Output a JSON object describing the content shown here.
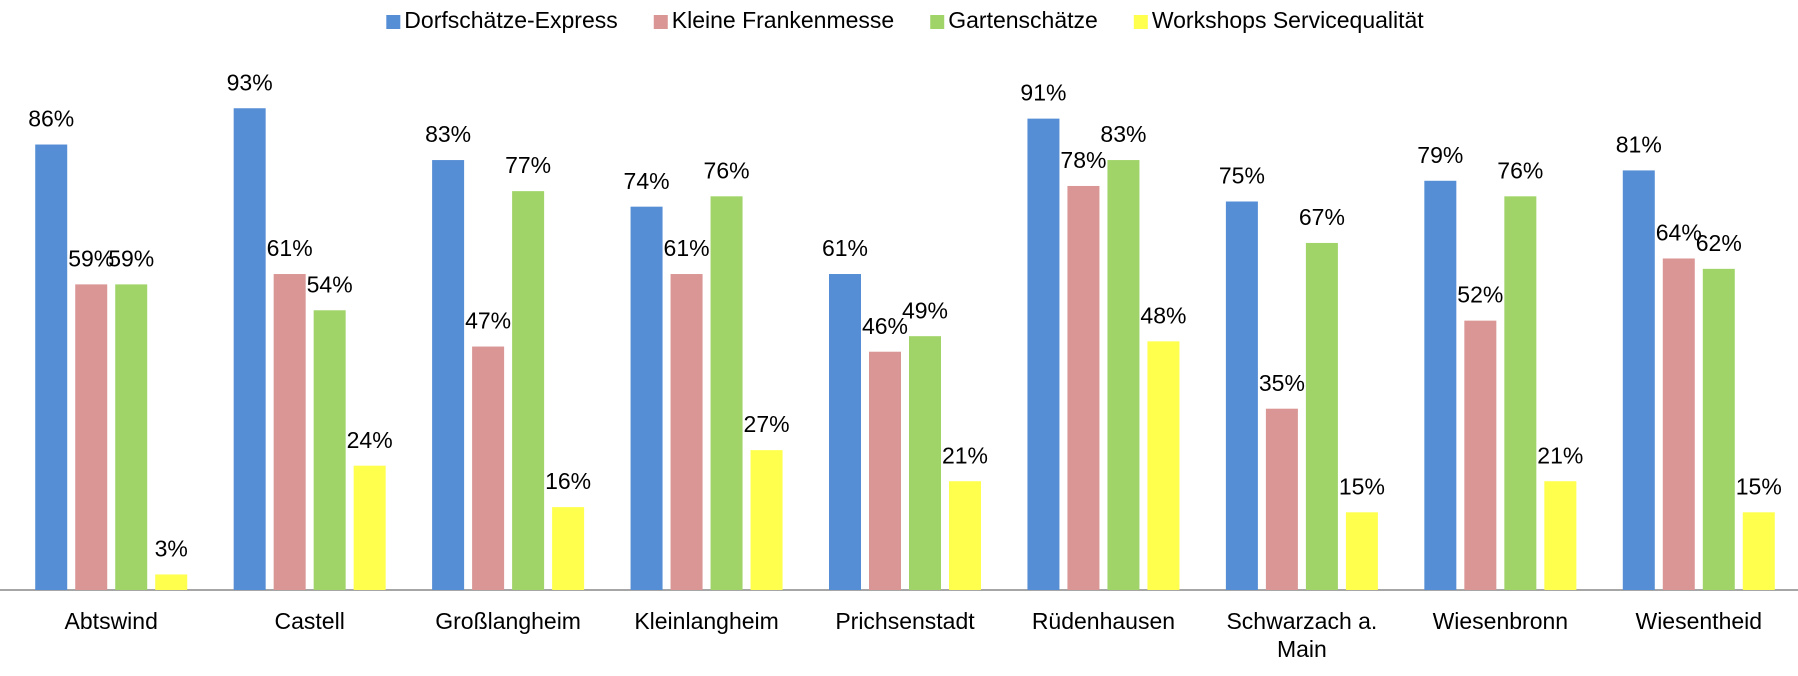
{
  "chart_data": {
    "type": "bar",
    "categories": [
      "Abtswind",
      "Castell",
      "Großlangheim",
      "Kleinlangheim",
      "Prichsenstadt",
      "Rüdenhausen",
      "Schwarzach a. Main",
      "Wiesenbronn",
      "Wiesentheid"
    ],
    "series": [
      {
        "name": "Dorfschätze-Express",
        "color": "#558ed5",
        "values": [
          86,
          93,
          83,
          74,
          61,
          91,
          75,
          79,
          81
        ],
        "value_labels": [
          "86%",
          "93%",
          "83%",
          "74%",
          "61%",
          "91%",
          "75%",
          "79%",
          "81%"
        ]
      },
      {
        "name": "Kleine Frankenmesse",
        "color": "#d99694",
        "values": [
          59,
          61,
          47,
          61,
          46,
          78,
          35,
          52,
          64
        ],
        "value_labels": [
          "59%",
          "61%",
          "47%",
          "61%",
          "46%",
          "78%",
          "35%",
          "52%",
          "64%"
        ]
      },
      {
        "name": "Gartenschätze",
        "color": "#a0d468",
        "values": [
          59,
          54,
          77,
          76,
          49,
          83,
          67,
          76,
          62
        ],
        "value_labels": [
          "59%",
          "54%",
          "77%",
          "76%",
          "49%",
          "83%",
          "67%",
          "76%",
          "62%"
        ]
      },
      {
        "name": "Workshops Servicequalität",
        "color": "#ffff4d",
        "values": [
          3,
          24,
          16,
          27,
          21,
          48,
          15,
          21,
          15
        ],
        "value_labels": [
          "3%",
          "24%",
          "16%",
          "27%",
          "21%",
          "48%",
          "15%",
          "21%",
          "15%"
        ]
      }
    ],
    "ylim": [
      0,
      100
    ],
    "legend": "top"
  }
}
